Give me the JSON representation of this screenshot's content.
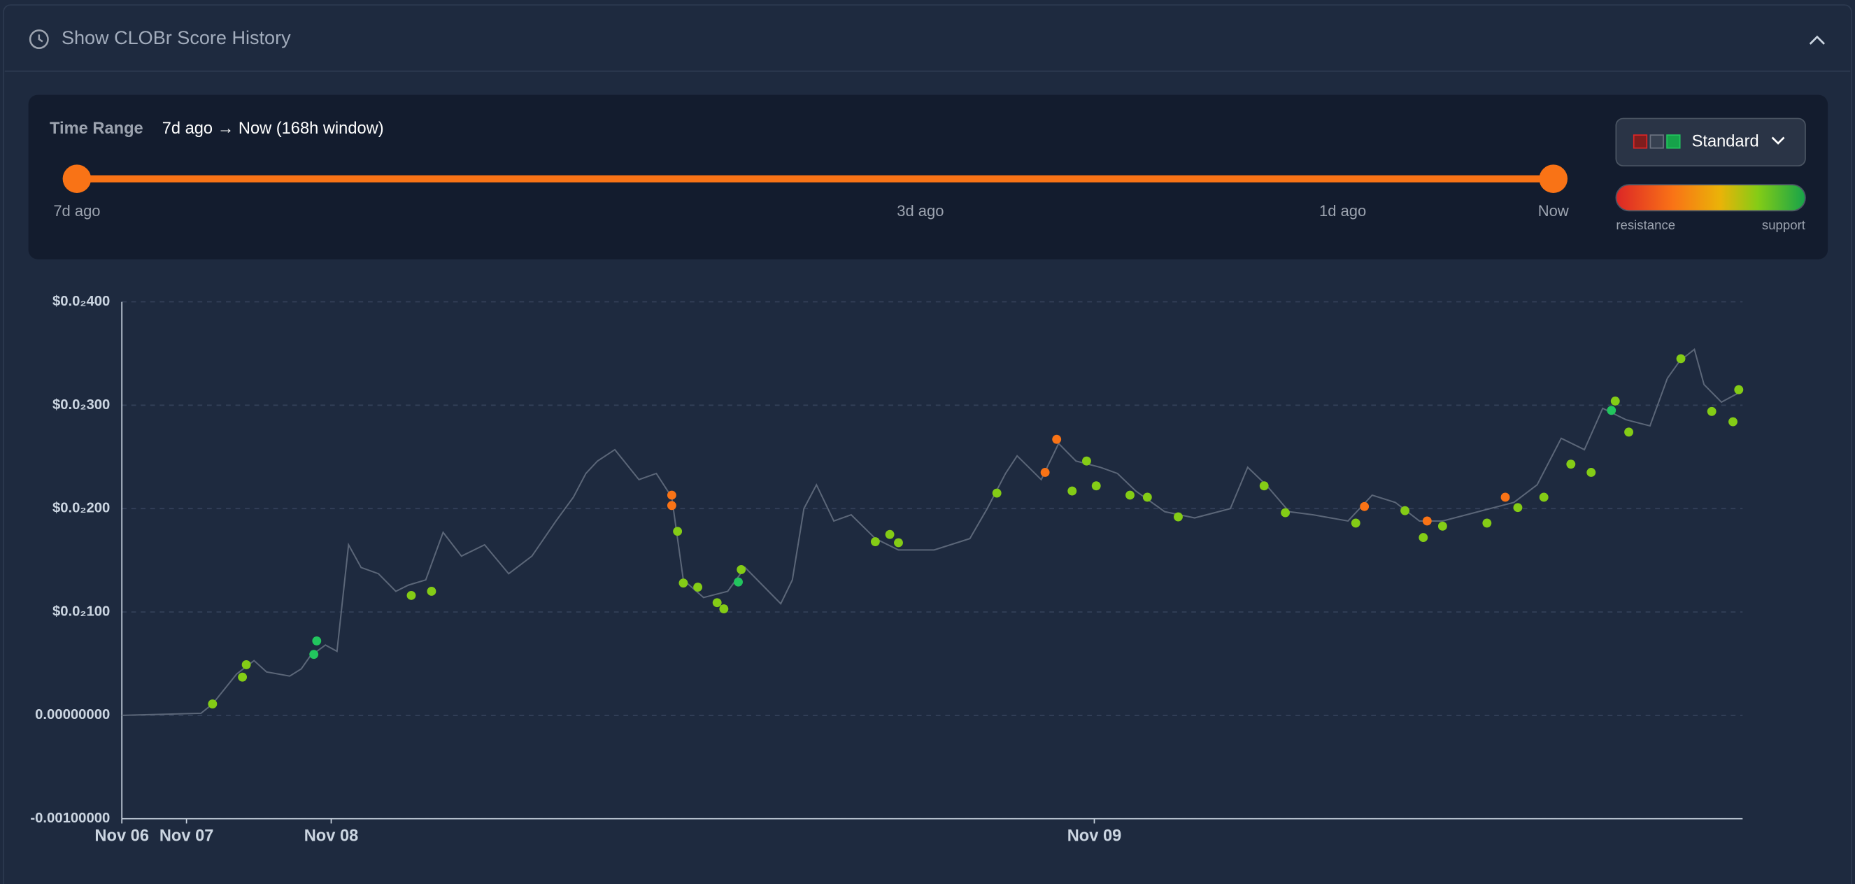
{
  "header": {
    "title": "Show CLOBr Score History"
  },
  "time_range": {
    "label": "Time Range",
    "value": "7d ago → Now (168h window)",
    "slider_labels": [
      "7d ago",
      "3d ago",
      "1d ago",
      "Now"
    ]
  },
  "mode": {
    "value": "Standard",
    "legend_low": "resistance",
    "legend_high": "support"
  },
  "chart_data": {
    "type": "line",
    "color": "#5b6678",
    "x": [
      0,
      8.2,
      9.4,
      11.9,
      13.7,
      15.0,
      17.4,
      18.6,
      19.5,
      21.1,
      22.3,
      23.5,
      24.8,
      26.6,
      28.4,
      29.7,
      31.5,
      33.3,
      35.2,
      37.6,
      40.1,
      42.5,
      45.0,
      46.8,
      48.1,
      49.3,
      51.1,
      53.6,
      55.4,
      57.0,
      58.2,
      60.3,
      62.8,
      64.6,
      66.4,
      68.3,
      69.5,
      70.7,
      72.0,
      73.8,
      75.6,
      78.1,
      80.5,
      84.2,
      87.9,
      89.7,
      91.6,
      92.8,
      95.3,
      97.1,
      98.9,
      101.4,
      103.2,
      105.1,
      108.1,
      111.2,
      114.9,
      116.7,
      118.6,
      121.0,
      123.5,
      127.1,
      129.6,
      132.0,
      134.5,
      136.9,
      140.6,
      144.3,
      146.7,
      149.2,
      151.6,
      153.5,
      155.9,
      158.4,
      160.2,
      161.5,
      163.0,
      164.0,
      165.8,
      168.0
    ],
    "values": [
      0.0,
      2e-05,
      0.00011,
      0.0004,
      0.00053,
      0.00042,
      0.00038,
      0.00045,
      0.00057,
      0.00068,
      0.00062,
      0.00165,
      0.00143,
      0.00137,
      0.0012,
      0.00126,
      0.00131,
      0.00177,
      0.00154,
      0.00165,
      0.00137,
      0.00154,
      0.00188,
      0.00211,
      0.00234,
      0.00246,
      0.00257,
      0.00228,
      0.00234,
      0.00211,
      0.00131,
      0.00114,
      0.0012,
      0.00143,
      0.00126,
      0.00108,
      0.00131,
      0.002,
      0.00223,
      0.00188,
      0.00194,
      0.00171,
      0.0016,
      0.0016,
      0.00171,
      0.002,
      0.00234,
      0.00251,
      0.00228,
      0.00263,
      0.00246,
      0.0024,
      0.00234,
      0.00217,
      0.00197,
      0.00191,
      0.002,
      0.0024,
      0.00223,
      0.00197,
      0.00194,
      0.00188,
      0.00213,
      0.00206,
      0.00188,
      0.00188,
      0.00197,
      0.00206,
      0.00223,
      0.00268,
      0.00257,
      0.00297,
      0.00286,
      0.0028,
      0.00326,
      0.00343,
      0.00354,
      0.0032,
      0.00303,
      0.00314
    ],
    "points": {
      "type": "scatter",
      "x": [
        9.4,
        12.5,
        12.9,
        19.9,
        20.2,
        30.0,
        32.1,
        57.0,
        57.0,
        57.6,
        58.2,
        59.7,
        61.7,
        62.4,
        63.9,
        64.2,
        78.1,
        79.6,
        80.5,
        90.7,
        95.7,
        96.9,
        98.5,
        100.0,
        101.0,
        104.5,
        106.3,
        109.5,
        118.4,
        120.6,
        127.9,
        128.8,
        133.0,
        134.9,
        135.3,
        136.9,
        141.5,
        143.4,
        144.7,
        147.4,
        150.2,
        152.3,
        154.4,
        154.8,
        156.2,
        161.6,
        164.8,
        167.0,
        167.6
      ],
      "values": [
        0.00011,
        0.00037,
        0.00049,
        0.00059,
        0.00072,
        0.00116,
        0.0012,
        0.00213,
        0.00203,
        0.00178,
        0.00128,
        0.00124,
        0.00109,
        0.00103,
        0.00129,
        0.00141,
        0.00168,
        0.00175,
        0.00167,
        0.00215,
        0.00235,
        0.00267,
        0.00217,
        0.00246,
        0.00222,
        0.00213,
        0.00211,
        0.00192,
        0.00222,
        0.00196,
        0.00186,
        0.00202,
        0.00198,
        0.00172,
        0.00188,
        0.00183,
        0.00186,
        0.00211,
        0.00201,
        0.00211,
        0.00243,
        0.00235,
        0.00295,
        0.00304,
        0.00274,
        0.00345,
        0.00294,
        0.00284,
        0.00315
      ],
      "colors": [
        "#84cc16",
        "#84cc16",
        "#84cc16",
        "#22c55e",
        "#22c55e",
        "#84cc16",
        "#84cc16",
        "#f97316",
        "#f97316",
        "#84cc16",
        "#84cc16",
        "#84cc16",
        "#84cc16",
        "#84cc16",
        "#22c55e",
        "#84cc16",
        "#84cc16",
        "#84cc16",
        "#84cc16",
        "#84cc16",
        "#f97316",
        "#f97316",
        "#84cc16",
        "#84cc16",
        "#84cc16",
        "#84cc16",
        "#84cc16",
        "#84cc16",
        "#84cc16",
        "#84cc16",
        "#84cc16",
        "#f97316",
        "#84cc16",
        "#84cc16",
        "#f97316",
        "#84cc16",
        "#84cc16",
        "#f97316",
        "#84cc16",
        "#84cc16",
        "#84cc16",
        "#84cc16",
        "#22c55e",
        "#84cc16",
        "#84cc16",
        "#84cc16",
        "#84cc16",
        "#84cc16",
        "#84cc16"
      ]
    },
    "xlim": [
      0,
      168
    ],
    "xticks": [
      {
        "value": 0,
        "label": "Nov 06"
      },
      {
        "value": 6.7,
        "label": "Nov 07"
      },
      {
        "value": 21.7,
        "label": "Nov 08"
      },
      {
        "value": 100.8,
        "label": "Nov 09"
      }
    ],
    "ylim": [
      -0.001,
      0.004
    ],
    "yticks": [
      {
        "value": -0.001,
        "label": "-0.00100000"
      },
      {
        "value": 0,
        "label": "0.00000000"
      },
      {
        "value": 0.001,
        "label": "$0.0₂100"
      },
      {
        "value": 0.002,
        "label": "$0.0₂200"
      },
      {
        "value": 0.003,
        "label": "$0.0₂300"
      },
      {
        "value": 0.004,
        "label": "$0.0₂400"
      }
    ],
    "grid": true
  }
}
